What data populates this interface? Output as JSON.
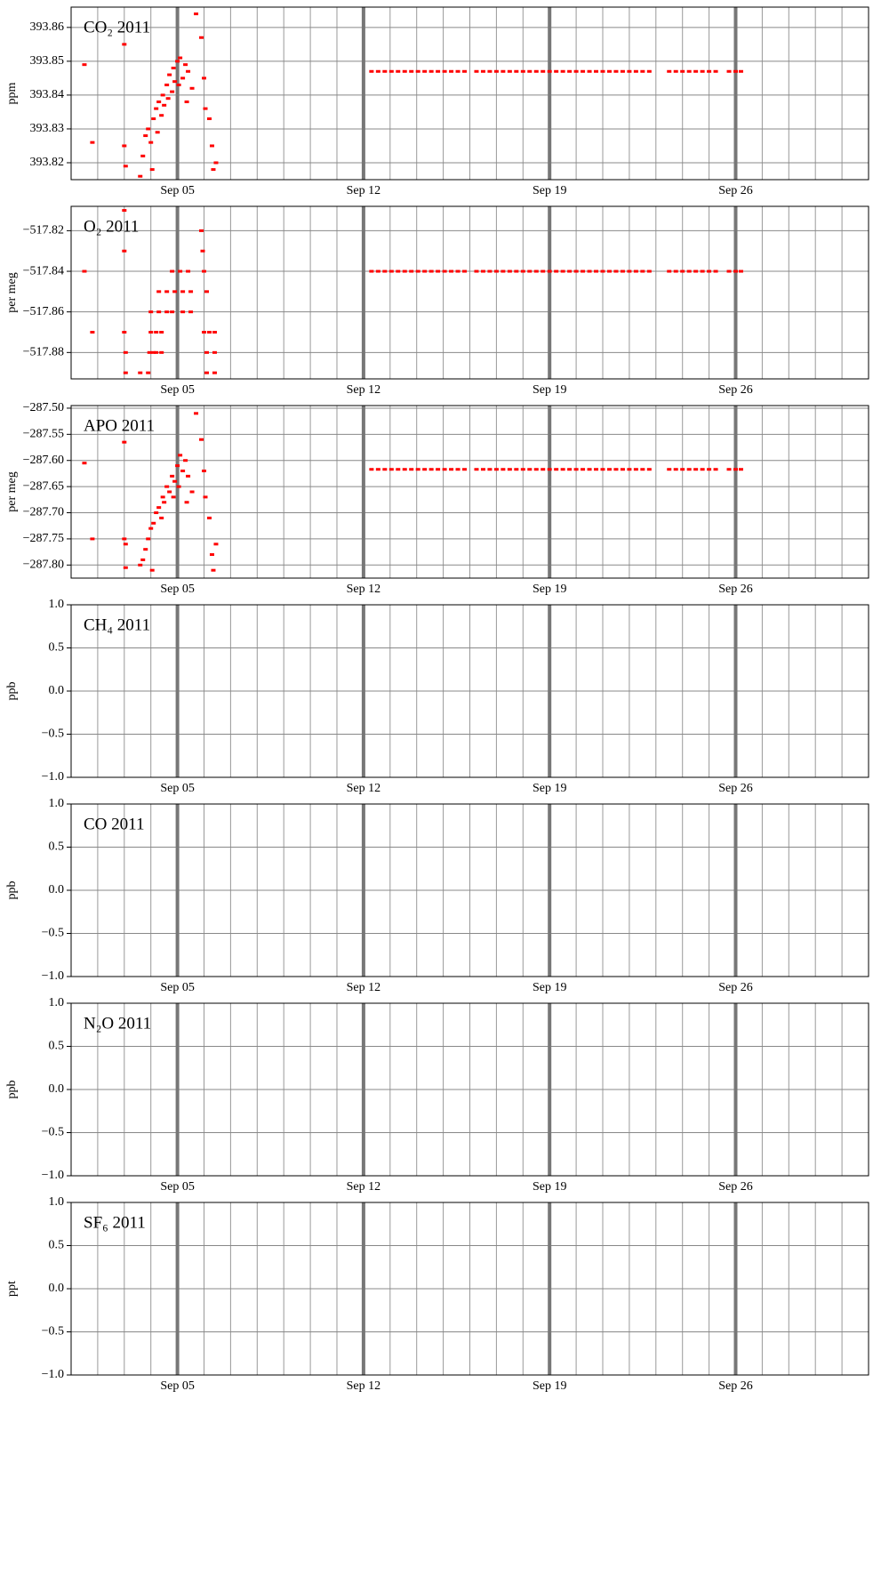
{
  "chart_data": [
    {
      "type": "scatter",
      "title": "CO₂ 2011",
      "y_label": "ppm",
      "color": "#ff0000",
      "grid": true,
      "xlim": [
        1,
        31
      ],
      "xticks": [
        {
          "value": 5,
          "label": "Sep 05"
        },
        {
          "value": 12,
          "label": "Sep 12"
        },
        {
          "value": 19,
          "label": "Sep 19"
        },
        {
          "value": 26,
          "label": "Sep 26"
        }
      ],
      "ylim": [
        393.815,
        393.866
      ],
      "yticks": [
        393.82,
        393.83,
        393.84,
        393.85,
        393.86
      ],
      "x": [
        1.5,
        1.8,
        3.0,
        3.0,
        3.05,
        3.6,
        3.7,
        3.8,
        3.9,
        4.0,
        4.05,
        4.1,
        4.2,
        4.25,
        4.3,
        4.4,
        4.45,
        4.5,
        4.6,
        4.65,
        4.7,
        4.8,
        4.85,
        4.9,
        5.0,
        5.05,
        5.1,
        5.2,
        5.3,
        5.35,
        5.4,
        5.55,
        5.7,
        5.9,
        6.0,
        6.05,
        6.2,
        6.3,
        6.35,
        6.45,
        12.3,
        12.55,
        12.8,
        13.05,
        13.3,
        13.55,
        13.8,
        14.05,
        14.3,
        14.55,
        14.8,
        15.05,
        15.3,
        15.55,
        15.8,
        16.25,
        16.5,
        16.75,
        17,
        17.25,
        17.5,
        17.75,
        18,
        18.25,
        18.5,
        18.75,
        19,
        19.25,
        19.5,
        19.75,
        20,
        20.25,
        20.5,
        20.75,
        21,
        21.25,
        21.5,
        21.75,
        22,
        22.25,
        22.5,
        22.75,
        23.5,
        23.75,
        24,
        24.25,
        24.5,
        24.75,
        25,
        25.25,
        25.75,
        26,
        26.2
      ],
      "values": [
        393.849,
        393.826,
        393.855,
        393.825,
        393.819,
        393.816,
        393.822,
        393.828,
        393.83,
        393.826,
        393.818,
        393.833,
        393.836,
        393.829,
        393.838,
        393.834,
        393.84,
        393.837,
        393.843,
        393.839,
        393.846,
        393.841,
        393.848,
        393.844,
        393.85,
        393.843,
        393.851,
        393.845,
        393.849,
        393.838,
        393.847,
        393.842,
        393.864,
        393.857,
        393.845,
        393.836,
        393.833,
        393.825,
        393.818,
        393.82,
        393.847,
        393.847,
        393.847,
        393.847,
        393.847,
        393.847,
        393.847,
        393.847,
        393.847,
        393.847,
        393.847,
        393.847,
        393.847,
        393.847,
        393.847,
        393.847,
        393.847,
        393.847,
        393.847,
        393.847,
        393.847,
        393.847,
        393.847,
        393.847,
        393.847,
        393.847,
        393.847,
        393.847,
        393.847,
        393.847,
        393.847,
        393.847,
        393.847,
        393.847,
        393.847,
        393.847,
        393.847,
        393.847,
        393.847,
        393.847,
        393.847,
        393.847,
        393.847,
        393.847,
        393.847,
        393.847,
        393.847,
        393.847,
        393.847,
        393.847,
        393.847,
        393.847,
        393.847
      ]
    },
    {
      "type": "scatter",
      "title": "O₂ 2011",
      "y_label": "per meg",
      "color": "#ff0000",
      "grid": true,
      "xlim": [
        1,
        31
      ],
      "xticks": [
        {
          "value": 5,
          "label": "Sep 05"
        },
        {
          "value": 12,
          "label": "Sep 12"
        },
        {
          "value": 19,
          "label": "Sep 19"
        },
        {
          "value": 26,
          "label": "Sep 26"
        }
      ],
      "ylim": [
        -517.893,
        -517.808
      ],
      "yticks": [
        {
          "value": -517.82,
          "label": "−517.82"
        },
        {
          "value": -517.84,
          "label": "−517.84"
        },
        {
          "value": -517.86,
          "label": "−517.86"
        },
        {
          "value": -517.88,
          "label": "−517.88"
        }
      ],
      "x": [
        1.5,
        1.8,
        3.0,
        3.0,
        3.0,
        3.05,
        3.05,
        3.6,
        3.9,
        3.95,
        4.1,
        4.2,
        4.4,
        4.0,
        4.2,
        4.4,
        4.0,
        4.3,
        4.6,
        4.8,
        4.3,
        4.6,
        4.9,
        5.2,
        5.5,
        4.8,
        5.1,
        5.4,
        5.2,
        5.5,
        5.9,
        5.95,
        6.0,
        6.1,
        6.0,
        6.2,
        6.4,
        6.1,
        6.4,
        6.1,
        6.4,
        12.3,
        12.55,
        12.8,
        13.05,
        13.3,
        13.55,
        13.8,
        14.05,
        14.3,
        14.55,
        14.8,
        15.05,
        15.3,
        15.55,
        15.8,
        16.25,
        16.5,
        16.75,
        17,
        17.25,
        17.5,
        17.75,
        18,
        18.25,
        18.5,
        18.75,
        19,
        19.25,
        19.5,
        19.75,
        20,
        20.25,
        20.5,
        20.75,
        21,
        21.25,
        21.5,
        21.75,
        22,
        22.25,
        22.5,
        22.75,
        23.5,
        23.75,
        24,
        24.25,
        24.5,
        24.75,
        25,
        25.25,
        25.75,
        26,
        26.2
      ],
      "values": [
        -517.84,
        -517.87,
        -517.81,
        -517.83,
        -517.87,
        -517.88,
        -517.89,
        -517.89,
        -517.89,
        -517.88,
        -517.88,
        -517.88,
        -517.88,
        -517.87,
        -517.87,
        -517.87,
        -517.86,
        -517.86,
        -517.86,
        -517.86,
        -517.85,
        -517.85,
        -517.85,
        -517.85,
        -517.85,
        -517.84,
        -517.84,
        -517.84,
        -517.86,
        -517.86,
        -517.82,
        -517.83,
        -517.84,
        -517.85,
        -517.87,
        -517.87,
        -517.87,
        -517.88,
        -517.88,
        -517.89,
        -517.89,
        -517.84,
        -517.84,
        -517.84,
        -517.84,
        -517.84,
        -517.84,
        -517.84,
        -517.84,
        -517.84,
        -517.84,
        -517.84,
        -517.84,
        -517.84,
        -517.84,
        -517.84,
        -517.84,
        -517.84,
        -517.84,
        -517.84,
        -517.84,
        -517.84,
        -517.84,
        -517.84,
        -517.84,
        -517.84,
        -517.84,
        -517.84,
        -517.84,
        -517.84,
        -517.84,
        -517.84,
        -517.84,
        -517.84,
        -517.84,
        -517.84,
        -517.84,
        -517.84,
        -517.84,
        -517.84,
        -517.84,
        -517.84,
        -517.84,
        -517.84,
        -517.84,
        -517.84,
        -517.84,
        -517.84,
        -517.84,
        -517.84,
        -517.84,
        -517.84,
        -517.84,
        -517.84
      ]
    },
    {
      "type": "scatter",
      "title": "APO 2011",
      "y_label": "per meg",
      "color": "#ff0000",
      "grid": true,
      "xlim": [
        1,
        31
      ],
      "xticks": [
        {
          "value": 5,
          "label": "Sep 05"
        },
        {
          "value": 12,
          "label": "Sep 12"
        },
        {
          "value": 19,
          "label": "Sep 19"
        },
        {
          "value": 26,
          "label": "Sep 26"
        }
      ],
      "ylim": [
        -287.825,
        -287.495
      ],
      "yticks": [
        {
          "value": -287.5,
          "label": "−287.50"
        },
        {
          "value": -287.55,
          "label": "−287.55"
        },
        {
          "value": -287.6,
          "label": "−287.60"
        },
        {
          "value": -287.65,
          "label": "−287.65"
        },
        {
          "value": -287.7,
          "label": "−287.70"
        },
        {
          "value": -287.75,
          "label": "−287.75"
        },
        {
          "value": -287.8,
          "label": "−287.80"
        }
      ],
      "x": [
        1.5,
        1.8,
        3.0,
        3.0,
        3.05,
        3.05,
        3.6,
        3.7,
        3.8,
        3.9,
        4.0,
        4.05,
        4.1,
        4.2,
        4.3,
        4.4,
        4.45,
        4.5,
        4.6,
        4.7,
        4.8,
        4.85,
        4.9,
        5.0,
        5.05,
        5.1,
        5.2,
        5.3,
        5.35,
        5.4,
        5.55,
        5.7,
        5.9,
        6.0,
        6.05,
        6.2,
        6.3,
        6.35,
        6.45,
        12.3,
        12.55,
        12.8,
        13.05,
        13.3,
        13.55,
        13.8,
        14.05,
        14.3,
        14.55,
        14.8,
        15.05,
        15.3,
        15.55,
        15.8,
        16.25,
        16.5,
        16.75,
        17,
        17.25,
        17.5,
        17.75,
        18,
        18.25,
        18.5,
        18.75,
        19,
        19.25,
        19.5,
        19.75,
        20,
        20.25,
        20.5,
        20.75,
        21,
        21.25,
        21.5,
        21.75,
        22,
        22.25,
        22.5,
        22.75,
        23.5,
        23.75,
        24,
        24.25,
        24.5,
        24.75,
        25,
        25.25,
        25.75,
        26,
        26.2
      ],
      "values": [
        -287.605,
        -287.75,
        -287.565,
        -287.75,
        -287.76,
        -287.805,
        -287.8,
        -287.79,
        -287.77,
        -287.75,
        -287.73,
        -287.81,
        -287.72,
        -287.7,
        -287.69,
        -287.71,
        -287.67,
        -287.68,
        -287.65,
        -287.66,
        -287.63,
        -287.67,
        -287.64,
        -287.61,
        -287.65,
        -287.59,
        -287.62,
        -287.6,
        -287.68,
        -287.63,
        -287.66,
        -287.51,
        -287.56,
        -287.62,
        -287.67,
        -287.71,
        -287.78,
        -287.81,
        -287.76,
        -287.617,
        -287.617,
        -287.617,
        -287.617,
        -287.617,
        -287.617,
        -287.617,
        -287.617,
        -287.617,
        -287.617,
        -287.617,
        -287.617,
        -287.617,
        -287.617,
        -287.617,
        -287.617,
        -287.617,
        -287.617,
        -287.617,
        -287.617,
        -287.617,
        -287.617,
        -287.617,
        -287.617,
        -287.617,
        -287.617,
        -287.617,
        -287.617,
        -287.617,
        -287.617,
        -287.617,
        -287.617,
        -287.617,
        -287.617,
        -287.617,
        -287.617,
        -287.617,
        -287.617,
        -287.617,
        -287.617,
        -287.617,
        -287.617,
        -287.617,
        -287.617,
        -287.617,
        -287.617,
        -287.617,
        -287.617,
        -287.617,
        -287.617,
        -287.617,
        -287.617,
        -287.617
      ]
    },
    {
      "type": "scatter",
      "title": "CH₄ 2011",
      "y_label": "ppb",
      "color": "#ff0000",
      "grid": true,
      "xlim": [
        1,
        31
      ],
      "xticks": [
        {
          "value": 5,
          "label": "Sep 05"
        },
        {
          "value": 12,
          "label": "Sep 12"
        },
        {
          "value": 19,
          "label": "Sep 19"
        },
        {
          "value": 26,
          "label": "Sep 26"
        }
      ],
      "ylim": [
        -1,
        1
      ],
      "yticks": [
        {
          "value": 1,
          "label": "1.0"
        },
        {
          "value": 0.5,
          "label": "0.5"
        },
        {
          "value": 0,
          "label": "0.0"
        },
        {
          "value": -0.5,
          "label": "−0.5"
        },
        {
          "value": -1,
          "label": "−1.0"
        }
      ],
      "x": [],
      "values": []
    },
    {
      "type": "scatter",
      "title": "CO 2011",
      "y_label": "ppb",
      "color": "#ff0000",
      "grid": true,
      "xlim": [
        1,
        31
      ],
      "xticks": [
        {
          "value": 5,
          "label": "Sep 05"
        },
        {
          "value": 12,
          "label": "Sep 12"
        },
        {
          "value": 19,
          "label": "Sep 19"
        },
        {
          "value": 26,
          "label": "Sep 26"
        }
      ],
      "ylim": [
        -1,
        1
      ],
      "yticks": [
        {
          "value": 1,
          "label": "1.0"
        },
        {
          "value": 0.5,
          "label": "0.5"
        },
        {
          "value": 0,
          "label": "0.0"
        },
        {
          "value": -0.5,
          "label": "−0.5"
        },
        {
          "value": -1,
          "label": "−1.0"
        }
      ],
      "x": [],
      "values": []
    },
    {
      "type": "scatter",
      "title": "N₂O 2011",
      "y_label": "ppb",
      "color": "#ff0000",
      "grid": true,
      "xlim": [
        1,
        31
      ],
      "xticks": [
        {
          "value": 5,
          "label": "Sep 05"
        },
        {
          "value": 12,
          "label": "Sep 12"
        },
        {
          "value": 19,
          "label": "Sep 19"
        },
        {
          "value": 26,
          "label": "Sep 26"
        }
      ],
      "ylim": [
        -1,
        1
      ],
      "yticks": [
        {
          "value": 1,
          "label": "1.0"
        },
        {
          "value": 0.5,
          "label": "0.5"
        },
        {
          "value": 0,
          "label": "0.0"
        },
        {
          "value": -0.5,
          "label": "−0.5"
        },
        {
          "value": -1,
          "label": "−1.0"
        }
      ],
      "x": [],
      "values": []
    },
    {
      "type": "scatter",
      "title": "SF₆ 2011",
      "y_label": "ppt",
      "color": "#ff0000",
      "grid": true,
      "xlim": [
        1,
        31
      ],
      "xticks": [
        {
          "value": 5,
          "label": "Sep 05"
        },
        {
          "value": 12,
          "label": "Sep 12"
        },
        {
          "value": 19,
          "label": "Sep 19"
        },
        {
          "value": 26,
          "label": "Sep 26"
        }
      ],
      "ylim": [
        -1,
        1
      ],
      "yticks": [
        {
          "value": 1,
          "label": "1.0"
        },
        {
          "value": 0.5,
          "label": "0.5"
        },
        {
          "value": 0,
          "label": "0.0"
        },
        {
          "value": -0.5,
          "label": "−0.5"
        },
        {
          "value": -1,
          "label": "−1.0"
        }
      ],
      "x": [],
      "values": []
    }
  ]
}
